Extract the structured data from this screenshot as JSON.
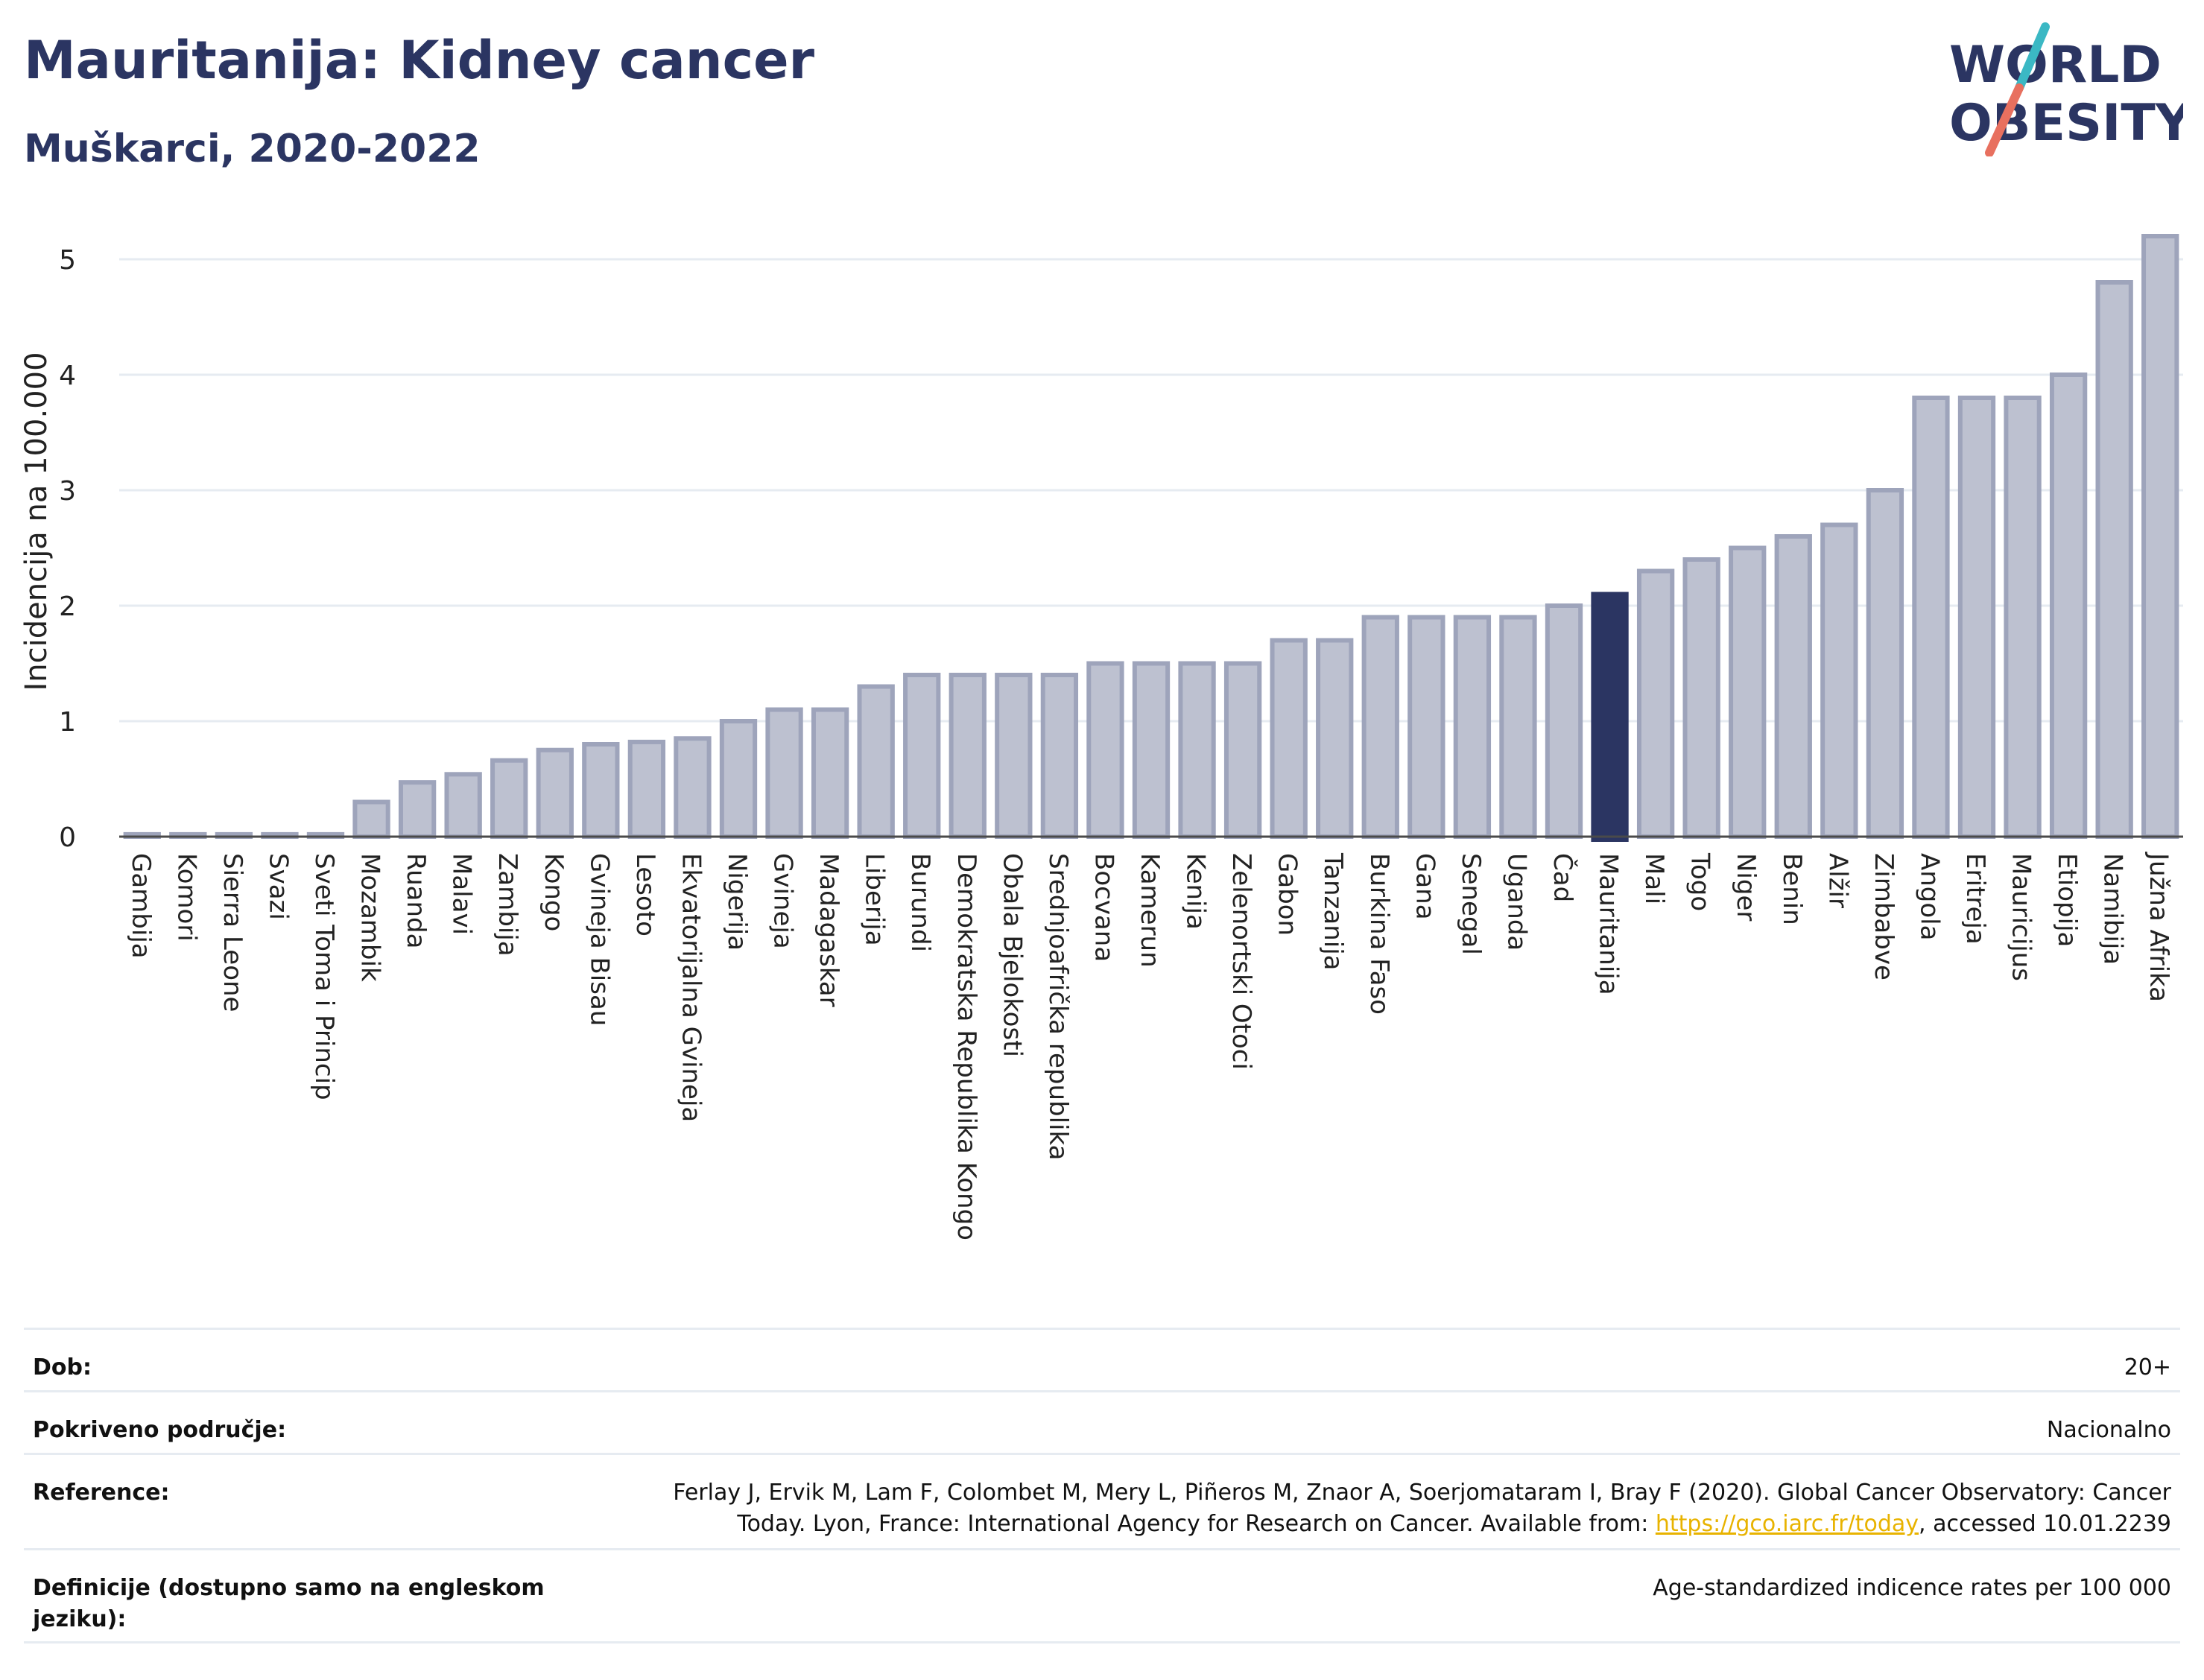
{
  "header": {
    "title": "Mauritanija: Kidney cancer",
    "subtitle": "Muškarci, 2020-2022"
  },
  "logo": {
    "line1": "WORLD",
    "line2": "OBESITY",
    "accent_teal": "#3bb8c4",
    "accent_coral": "#e8705f",
    "text_color": "#2b3562"
  },
  "colors": {
    "bar_fill": "#bdc1d0",
    "bar_stroke": "#9ea4bb",
    "highlight": "#2b3562",
    "grid": "#e6ebf1",
    "axis": "#4a4a4a"
  },
  "chart_data": {
    "type": "bar",
    "ylabel": "Incidencija na 100.000",
    "ylim": [
      0,
      5.5
    ],
    "yticks": [
      0,
      1,
      2,
      3,
      4,
      5
    ],
    "highlight": "Mauritanija",
    "categories": [
      "Gambija",
      "Komori",
      "Sierra Leone",
      "Svazi",
      "Sveti Toma i Princip",
      "Mozambik",
      "Ruanda",
      "Malavi",
      "Zambija",
      "Kongo",
      "Gvineja Bisau",
      "Lesoto",
      "Ekvatorijalna Gvineja",
      "Nigerija",
      "Gvineja",
      "Madagaskar",
      "Liberija",
      "Burundi",
      "Demokratska Republika Kongo",
      "Obala Bjelokosti",
      "Srednjoafrička republika",
      "Bocvana",
      "Kamerun",
      "Kenija",
      "Zelenortski Otoci",
      "Gabon",
      "Tanzanija",
      "Burkina Faso",
      "Gana",
      "Senegal",
      "Uganda",
      "Čad",
      "Mauritanija",
      "Mali",
      "Togo",
      "Niger",
      "Benin",
      "Alžir",
      "Zimbabve",
      "Angola",
      "Eritreja",
      "Mauricijus",
      "Etiopija",
      "Namibija",
      "Južna Afrika"
    ],
    "values": [
      0.02,
      0.02,
      0.02,
      0.02,
      0.02,
      0.3,
      0.47,
      0.54,
      0.66,
      0.75,
      0.8,
      0.82,
      0.85,
      1.0,
      1.1,
      1.1,
      1.3,
      1.4,
      1.4,
      1.4,
      1.4,
      1.5,
      1.5,
      1.5,
      1.5,
      1.7,
      1.7,
      1.9,
      1.9,
      1.9,
      1.9,
      2.0,
      2.1,
      2.3,
      2.4,
      2.5,
      2.6,
      2.7,
      3.0,
      3.8,
      3.8,
      3.8,
      4.0,
      4.8,
      5.2
    ]
  },
  "meta": {
    "rows": [
      {
        "label": "Dob:",
        "value": "20+"
      },
      {
        "label": "Pokriveno područje:",
        "value": "Nacionalno"
      },
      {
        "label": "Reference:",
        "value_before": "Ferlay J, Ervik M, Lam F, Colombet M, Mery L, Piñeros M, Znaor A, Soerjomataram I, Bray F (2020). Global Cancer Observatory: Cancer Today. Lyon, France: International Agency for Research on Cancer. Available from: ",
        "link": "https://gco.iarc.fr/today",
        "value_after": ", accessed 10.01.2239"
      },
      {
        "label": "Definicije (dostupno samo na engleskom jeziku):",
        "value": "Age-standardized indicence rates per 100 000"
      }
    ]
  }
}
